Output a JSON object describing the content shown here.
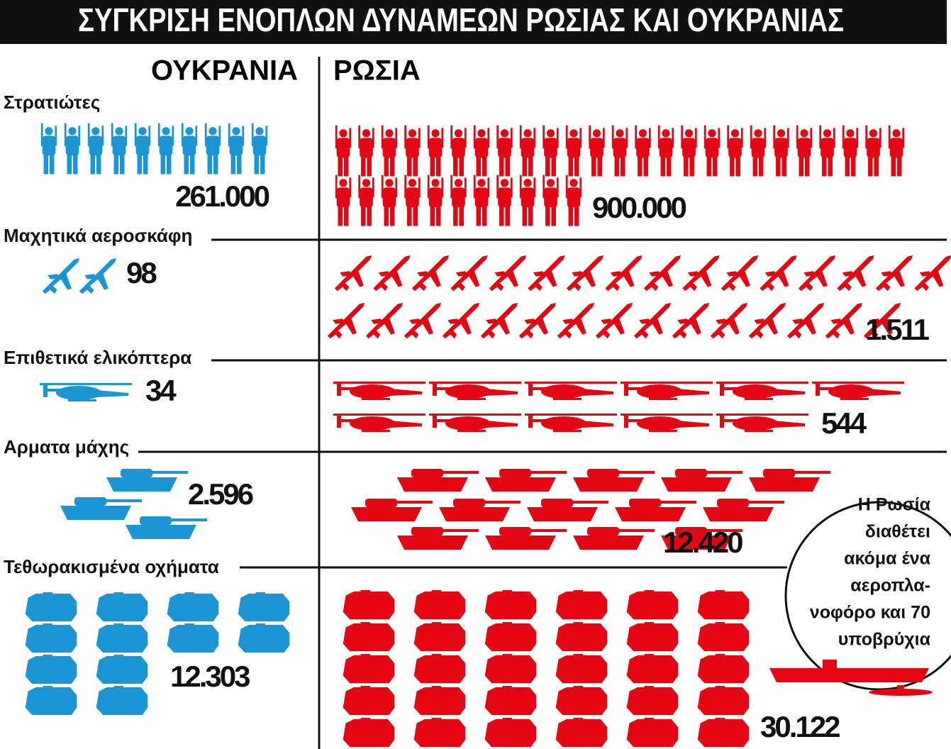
{
  "title": "ΣΥΓΚΡΙΣΗ ΕΝΟΠΛΩΝ ΔΥΝΑΜΕΩΝ ΡΩΣΙΑΣ ΚΑΙ ΟΥΚΡΑΝΙΑΣ",
  "columns": {
    "left": "ΟΥΚΡΑΝΙΑ",
    "right": "ΡΩΣΙΑ"
  },
  "rows": [
    {
      "label": "Στρατιώτες",
      "ukraine": "261.000",
      "russia": "900.000"
    },
    {
      "label": "Μαχητικά αεροσκάφη",
      "ukraine": "98",
      "russia": "1.511"
    },
    {
      "label": "Επιθετικά ελικόπτερα",
      "ukraine": "34",
      "russia": "544"
    },
    {
      "label": "Αρματα μάχης",
      "ukraine": "2.596",
      "russia": "12.420"
    },
    {
      "label": "Τεθωρακισμένα οχήματα",
      "ukraine": "12.303",
      "russia": "30.122"
    }
  ],
  "note": [
    "Η Ρωσία",
    "διαθέτει",
    "ακόμα ένα",
    "αεροπλα-",
    "νοφόρο και 70",
    "υποβρύχια"
  ]
}
